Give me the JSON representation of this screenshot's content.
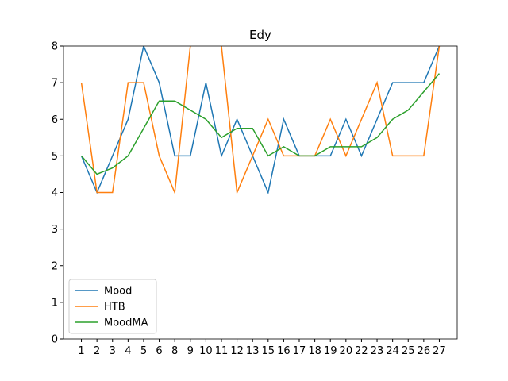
{
  "chart_data": {
    "type": "line",
    "title": "Edy",
    "categories": [
      "1",
      "2",
      "3",
      "4",
      "5",
      "6",
      "8",
      "9",
      "10",
      "11",
      "12",
      "13",
      "15",
      "16",
      "17",
      "18",
      "19",
      "20",
      "22",
      "23",
      "24",
      "25",
      "26",
      "27"
    ],
    "series": [
      {
        "name": "Mood",
        "color": "#1f77b4",
        "values": [
          5,
          4,
          5,
          6,
          8,
          7,
          5,
          5,
          7,
          5,
          6,
          5,
          4,
          6,
          5,
          5,
          5,
          6,
          5,
          6,
          7,
          7,
          7,
          8
        ]
      },
      {
        "name": "HTB",
        "color": "#ff7f0e",
        "values": [
          7,
          4,
          4,
          7,
          7,
          5,
          4,
          8,
          9,
          8,
          4,
          5,
          6,
          5,
          5,
          5,
          6,
          5,
          6,
          7,
          5,
          5,
          5,
          8
        ]
      },
      {
        "name": "MoodMA",
        "color": "#2ca02c",
        "values": [
          5,
          4.5,
          4.67,
          5,
          5.75,
          6.5,
          6.5,
          6.25,
          6,
          5.5,
          5.75,
          5.75,
          5,
          5.25,
          5,
          5,
          5.25,
          5.25,
          5.25,
          5.5,
          6,
          6.25,
          6.75,
          7.25
        ]
      }
    ],
    "ylim": [
      0,
      8
    ],
    "yticks": [
      0,
      1,
      2,
      3,
      4,
      5,
      6,
      7,
      8
    ],
    "legend": "lower left"
  }
}
